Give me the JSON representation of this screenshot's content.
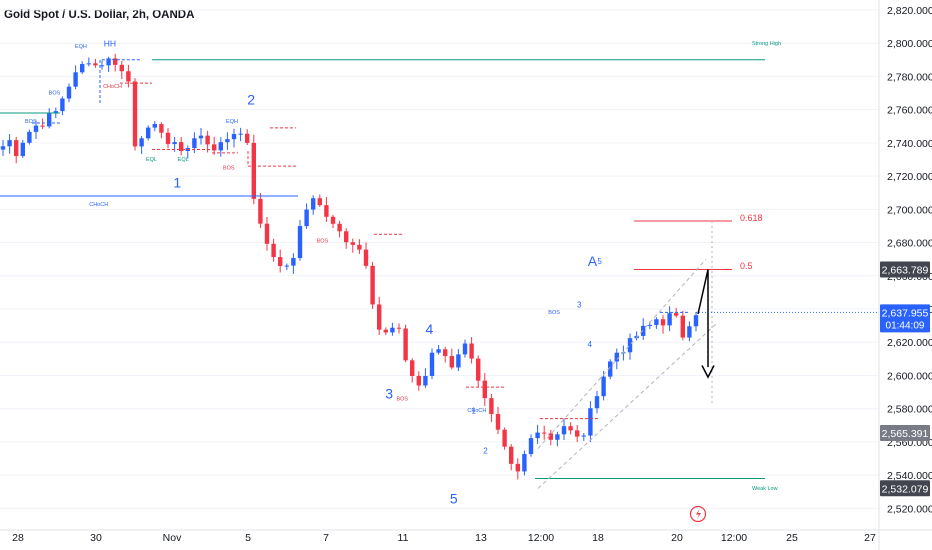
{
  "header": {
    "symbol_title": "Gold Spot / U.S. Dollar, 2h, OANDA"
  },
  "chart_data": {
    "type": "candlestick",
    "title": "Gold Spot / U.S. Dollar, 2h, OANDA",
    "price_axis": {
      "min": 2513,
      "max": 2826,
      "ticks": [
        2820,
        2800,
        2780,
        2760,
        2740,
        2720,
        2700,
        2680,
        2660,
        2640,
        2620,
        2600,
        2580,
        2560,
        2540,
        2520
      ],
      "tick_labels": [
        "2,820.000",
        "2,800.000",
        "2,780.000",
        "2,760.000",
        "2,740.000",
        "2,720.000",
        "2,700.000",
        "2,680.000",
        "2,660.000",
        "2,640.000",
        "2,620.000",
        "2,600.000",
        "2,580.000",
        "2,560.000",
        "2,540.000",
        "2,520.000"
      ]
    },
    "time_axis": {
      "labels": [
        "28",
        "30",
        "Nov",
        "5",
        "7",
        "11",
        "13",
        "12:00",
        "18",
        "20",
        "12:00",
        "25",
        "27"
      ]
    },
    "price_tags": [
      {
        "value": 2663.789,
        "label": "2,663.789",
        "bg": "#434651",
        "fg": "#ffffff"
      },
      {
        "value": 2637.955,
        "label": "2,637.955",
        "sub": "01:44:09",
        "bg": "#2962ff",
        "fg": "#ffffff"
      },
      {
        "value": 2565.391,
        "label": "2,565.391",
        "bg": "#787b86",
        "fg": "#ffffff"
      },
      {
        "value": 2532.079,
        "label": "2,532.079",
        "bg": "#434651",
        "fg": "#ffffff"
      }
    ],
    "path": [
      [
        0,
        2738
      ],
      [
        1.2,
        2742
      ],
      [
        2,
        2734
      ],
      [
        3.5,
        2745
      ],
      [
        4.8,
        2750
      ],
      [
        6,
        2752
      ],
      [
        7,
        2756
      ],
      [
        8.5,
        2760
      ],
      [
        9.2,
        2770
      ],
      [
        10.5,
        2778
      ],
      [
        11.8,
        2786
      ],
      [
        13,
        2790
      ],
      [
        14.2,
        2786
      ],
      [
        15.4,
        2789
      ],
      [
        16.6,
        2791
      ],
      [
        17.8,
        2784
      ],
      [
        19,
        2777
      ],
      [
        19.5,
        2737
      ],
      [
        20.5,
        2742
      ],
      [
        21.5,
        2748
      ],
      [
        22.5,
        2746
      ],
      [
        23.5,
        2752
      ],
      [
        24.5,
        2744
      ],
      [
        25.4,
        2736
      ],
      [
        26.5,
        2740
      ],
      [
        27.4,
        2734
      ],
      [
        28.5,
        2740
      ],
      [
        29.5,
        2745
      ],
      [
        30.5,
        2742
      ],
      [
        31.6,
        2738
      ],
      [
        32.5,
        2736
      ],
      [
        33.5,
        2740
      ],
      [
        34.5,
        2745
      ],
      [
        35.4,
        2748
      ],
      [
        36.5,
        2743
      ],
      [
        37.2,
        2740
      ],
      [
        38,
        2708
      ],
      [
        39,
        2690
      ],
      [
        40,
        2680
      ],
      [
        41,
        2672
      ],
      [
        42,
        2668
      ],
      [
        43,
        2664
      ],
      [
        44,
        2672
      ],
      [
        45,
        2688
      ],
      [
        46,
        2700
      ],
      [
        47,
        2708
      ],
      [
        48,
        2702
      ],
      [
        49,
        2696
      ],
      [
        50,
        2690
      ],
      [
        51,
        2686
      ],
      [
        52,
        2682
      ],
      [
        53,
        2680
      ],
      [
        54,
        2676
      ],
      [
        55,
        2668
      ],
      [
        56,
        2645
      ],
      [
        57,
        2628
      ],
      [
        58,
        2625
      ],
      [
        59,
        2628
      ],
      [
        60,
        2626
      ],
      [
        61,
        2610
      ],
      [
        62,
        2600
      ],
      [
        63,
        2594
      ],
      [
        64,
        2600
      ],
      [
        65,
        2612
      ],
      [
        66,
        2616
      ],
      [
        67,
        2612
      ],
      [
        68,
        2606
      ],
      [
        69,
        2614
      ],
      [
        70,
        2618
      ],
      [
        71,
        2612
      ],
      [
        72,
        2598
      ],
      [
        73,
        2585
      ],
      [
        74,
        2575
      ],
      [
        75,
        2565
      ],
      [
        76,
        2555
      ],
      [
        77,
        2545
      ],
      [
        78,
        2541
      ],
      [
        79,
        2552
      ],
      [
        80,
        2562
      ],
      [
        81,
        2568
      ],
      [
        82,
        2566
      ],
      [
        83,
        2562
      ],
      [
        84,
        2566
      ],
      [
        85,
        2570
      ],
      [
        86,
        2566
      ],
      [
        87,
        2562
      ],
      [
        88,
        2565
      ],
      [
        89,
        2578
      ],
      [
        90,
        2590
      ],
      [
        91,
        2600
      ],
      [
        92,
        2608
      ],
      [
        93,
        2614
      ],
      [
        94,
        2616
      ],
      [
        95,
        2620
      ],
      [
        96,
        2624
      ],
      [
        97,
        2628
      ],
      [
        98,
        2630
      ],
      [
        99,
        2634
      ],
      [
        100,
        2632
      ],
      [
        101,
        2636
      ],
      [
        102,
        2634
      ],
      [
        103,
        2624
      ],
      [
        104,
        2632
      ],
      [
        105,
        2638
      ]
    ],
    "annotations": {
      "labels": [
        {
          "text": "EQH",
          "x": 11.8,
          "y": 2797
        },
        {
          "text": "HH",
          "x": 16.2,
          "y": 2798
        },
        {
          "text": "BOS",
          "x": 7.8,
          "y": 2769
        },
        {
          "text": "BOS",
          "x": 4.2,
          "y": 2752
        },
        {
          "text": "CHoCH",
          "x": 16.6,
          "y": 2773
        },
        {
          "text": "EQL",
          "x": 22.5,
          "y": 2729
        },
        {
          "text": "EQL",
          "x": 27.3,
          "y": 2729
        },
        {
          "text": "EQH",
          "x": 34.7,
          "y": 2752
        },
        {
          "text": "BOS",
          "x": 34.2,
          "y": 2724
        },
        {
          "text": "CHoCH",
          "x": 14.5,
          "y": 2702
        },
        {
          "text": "BOS",
          "x": 48.4,
          "y": 2680
        },
        {
          "text": "BOS",
          "x": 60.5,
          "y": 2585
        },
        {
          "text": "CHoCH",
          "x": 71.8,
          "y": 2578
        },
        {
          "text": "BOS",
          "x": 83.5,
          "y": 2637
        },
        {
          "text": "Strong High",
          "x": 98.5,
          "y": 2799
        },
        {
          "text": "Weak Low",
          "x": 98.5,
          "y": 2531
        },
        {
          "text": "0.618",
          "x": 96.5,
          "y": 2693
        },
        {
          "text": "0.5",
          "x": 96.5,
          "y": 2664
        }
      ],
      "waves": [
        {
          "text": "1",
          "x": 26.4,
          "y": 2713
        },
        {
          "text": "2",
          "x": 37.6,
          "y": 2763
        },
        {
          "text": "3",
          "x": 58.5,
          "y": 2586
        },
        {
          "text": "4",
          "x": 64.6,
          "y": 2625
        },
        {
          "text": "5",
          "x": 68.3,
          "y": 2523
        },
        {
          "text": "A",
          "x": 89.3,
          "y": 2666
        },
        {
          "text": "5",
          "x": 90.4,
          "y": 2667
        },
        {
          "text": "1",
          "x": 71.3,
          "y": 2577
        },
        {
          "text": "2",
          "x": 73.1,
          "y": 2553
        },
        {
          "text": "3",
          "x": 87.3,
          "y": 2641
        },
        {
          "text": "4",
          "x": 88.9,
          "y": 2617
        }
      ]
    },
    "levels": [
      {
        "name": "strong-high",
        "value": 2790
      },
      {
        "name": "choch",
        "value": 2708
      },
      {
        "name": "weak-low",
        "value": 2538
      },
      {
        "name": "fib-0.618",
        "value": 2693
      },
      {
        "name": "fib-0.5",
        "value": 2663.789
      }
    ],
    "colors": {
      "up": "#2962ff",
      "down": "#f23645",
      "grid": "#f0f3fa",
      "teal": "#089981",
      "blue": "#2962ff",
      "red": "#f23645"
    }
  }
}
